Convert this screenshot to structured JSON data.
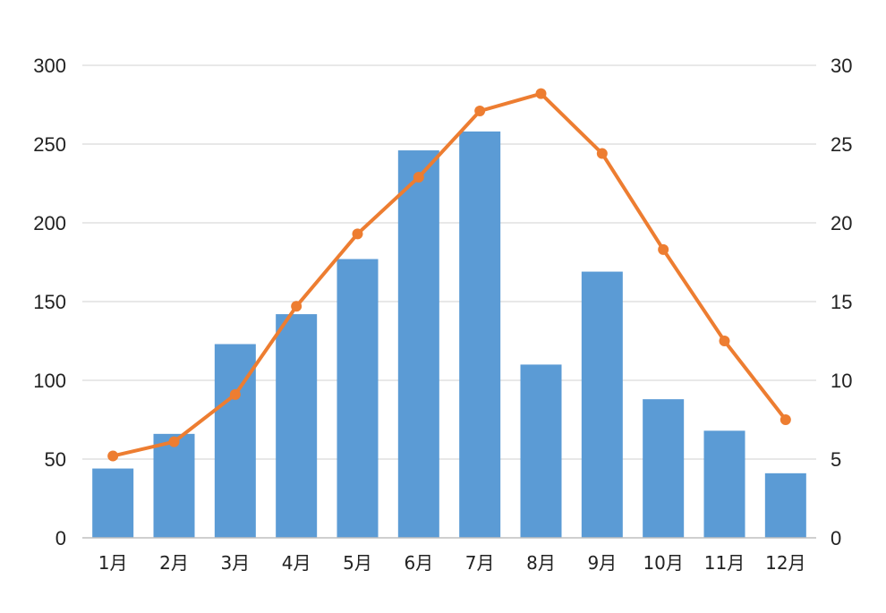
{
  "chart_data": {
    "type": "bar+line",
    "categories": [
      "1月",
      "2月",
      "3月",
      "4月",
      "5月",
      "6月",
      "7月",
      "8月",
      "9月",
      "10月",
      "11月",
      "12月"
    ],
    "series": [
      {
        "type": "bar",
        "axis": "left",
        "color": "#5b9bd5",
        "values": [
          44,
          66,
          123,
          142,
          177,
          246,
          258,
          110,
          169,
          88,
          68,
          41
        ]
      },
      {
        "type": "line",
        "axis": "right",
        "color": "#ed7d31",
        "values": [
          5.2,
          6.1,
          9.1,
          14.7,
          19.3,
          22.9,
          27.1,
          28.2,
          24.4,
          18.3,
          12.5,
          7.5
        ]
      }
    ],
    "y_left": {
      "min": 0,
      "max": 300,
      "ticks": [
        "0",
        "50",
        "100",
        "150",
        "200",
        "250",
        "300"
      ]
    },
    "y_right": {
      "min": 0,
      "max": 30,
      "ticks": [
        "0",
        "5",
        "10",
        "15",
        "20",
        "25",
        "30"
      ]
    },
    "grid": true,
    "legend": "none",
    "gridline_color": "#d9d9d9",
    "axis_line_color": "#bfbfbf"
  }
}
